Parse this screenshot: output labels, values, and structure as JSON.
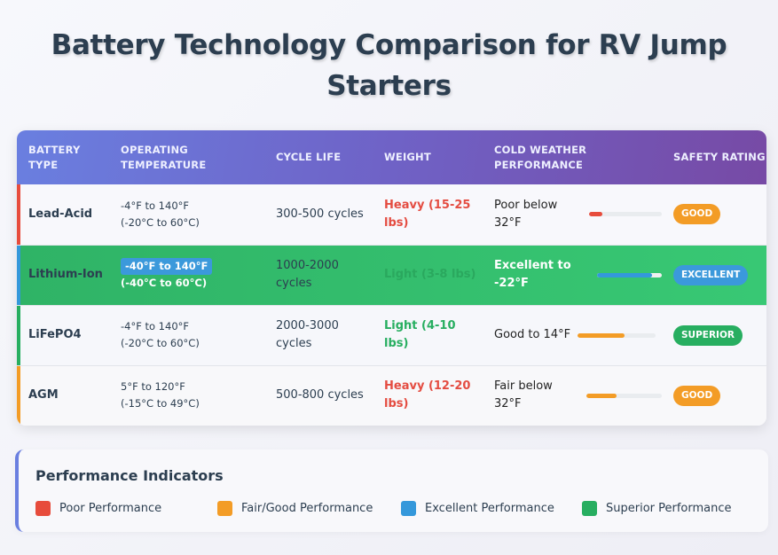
{
  "title": {
    "line1": "Battery Technology Comparison for RV Jump",
    "line2": "Starters"
  },
  "table": {
    "headers": [
      "Battery Type",
      "Operating Temperature",
      "Cycle Life",
      "Weight",
      "Cold Weather Performance",
      "Safety Rating"
    ],
    "rows": [
      {
        "type": "Lead-Acid",
        "edge_color": "#e74c3c",
        "temp_f": "-4°F to 140°F",
        "temp_c": "(-20°C to 60°C)",
        "cycle": "300-500 cycles",
        "weight": "Heavy (15-25 lbs)",
        "weight_class": "heavy",
        "cold": "Poor below 32°F",
        "cold_pct": 18,
        "cold_color": "#e74c3c",
        "rating": "Good",
        "rating_color": "#f39c26"
      },
      {
        "type": "Lithium-Ion",
        "edge_color": "#3498db",
        "temp_f": "-40°F to 140°F",
        "temp_c": "(-40°C to 60°C)",
        "cycle": "1000-2000 cycles",
        "weight": "Light (3-8 lbs)",
        "weight_class": "light-dim",
        "cold": "Excellent to -22°F",
        "cold_pct": 85,
        "cold_color": "#3498db",
        "rating": "Excellent",
        "rating_color": "#3b99db",
        "highlight": true
      },
      {
        "type": "LiFePO4",
        "edge_color": "#27ae60",
        "temp_f": "-4°F to 140°F",
        "temp_c": "(-20°C to 60°C)",
        "cycle": "2000-3000 cycles",
        "weight": "Light (4-10 lbs)",
        "weight_class": "light",
        "cold": "Good to 14°F",
        "cold_pct": 60,
        "cold_color": "#f39c26",
        "rating": "Superior",
        "rating_color": "#27ae60"
      },
      {
        "type": "AGM",
        "edge_color": "#f39c26",
        "temp_f": "5°F to 120°F",
        "temp_c": "(-15°C to 49°C)",
        "cycle": "500-800 cycles",
        "weight": "Heavy (12-20 lbs)",
        "weight_class": "heavy",
        "cold": "Fair below 32°F",
        "cold_pct": 40,
        "cold_color": "#f39c26",
        "rating": "Good",
        "rating_color": "#f39c26"
      }
    ]
  },
  "legend": {
    "title": "Performance Indicators",
    "items": [
      {
        "label": "Poor Performance",
        "color": "#e74c3c"
      },
      {
        "label": "Fair/Good Performance",
        "color": "#f39c26"
      },
      {
        "label": "Excellent Performance",
        "color": "#3498db"
      },
      {
        "label": "Superior Performance",
        "color": "#27ae60"
      }
    ]
  }
}
